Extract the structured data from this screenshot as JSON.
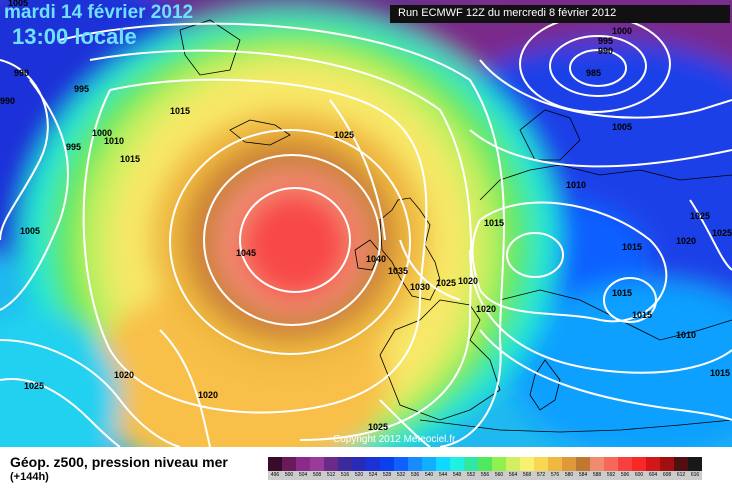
{
  "header": {
    "date": "mardi 14 février 2012",
    "time": "13:00 locale",
    "run": "Run ECMWF 12Z du mercredi 8 février 2012"
  },
  "copyright": "Copyright 2012 Meteociel.fr",
  "legend": {
    "title": "Géop. z500, pression niveau mer",
    "subtitle": "(+144h)",
    "scale": [
      {
        "label": "496",
        "color": "#3a0a2a"
      },
      {
        "label": "500",
        "color": "#6a1a5a"
      },
      {
        "label": "504",
        "color": "#8a2a8a"
      },
      {
        "label": "508",
        "color": "#9a3a9a"
      },
      {
        "label": "512",
        "color": "#6a2a8a"
      },
      {
        "label": "516",
        "color": "#3a2a9a"
      },
      {
        "label": "520",
        "color": "#2a2ab8"
      },
      {
        "label": "524",
        "color": "#1a32d8"
      },
      {
        "label": "528",
        "color": "#0a40f0"
      },
      {
        "label": "532",
        "color": "#1060ff"
      },
      {
        "label": "536",
        "color": "#1a8aff"
      },
      {
        "label": "540",
        "color": "#10b0ff"
      },
      {
        "label": "544",
        "color": "#10d8ff"
      },
      {
        "label": "548",
        "color": "#20f0e0"
      },
      {
        "label": "552",
        "color": "#30e8a0"
      },
      {
        "label": "556",
        "color": "#50e860"
      },
      {
        "label": "560",
        "color": "#90f050"
      },
      {
        "label": "564",
        "color": "#d0f060"
      },
      {
        "label": "568",
        "color": "#f8f070"
      },
      {
        "label": "572",
        "color": "#f8d850"
      },
      {
        "label": "576",
        "color": "#f0b840"
      },
      {
        "label": "580",
        "color": "#e09838"
      },
      {
        "label": "584",
        "color": "#c07830"
      },
      {
        "label": "588",
        "color": "#f08a70"
      },
      {
        "label": "592",
        "color": "#f86858"
      },
      {
        "label": "596",
        "color": "#f84040"
      },
      {
        "label": "600",
        "color": "#f82828"
      },
      {
        "label": "604",
        "color": "#d01818"
      },
      {
        "label": "608",
        "color": "#a01010"
      },
      {
        "label": "612",
        "color": "#501010"
      },
      {
        "label": "616",
        "color": "#181818"
      }
    ]
  },
  "isobars": {
    "labels": [
      "1005",
      "990",
      "990",
      "995",
      "995",
      "1000",
      "1010",
      "1005",
      "1015",
      "1015",
      "1025",
      "1045",
      "1040",
      "1035",
      "1030",
      "1025",
      "1020",
      "1020",
      "1015",
      "1000",
      "995",
      "990",
      "985",
      "1005",
      "1010",
      "1015",
      "1025",
      "1020",
      "1025",
      "1015",
      "1015",
      "1010",
      "1015",
      "1025",
      "1020",
      "1020",
      "1025"
    ]
  }
}
